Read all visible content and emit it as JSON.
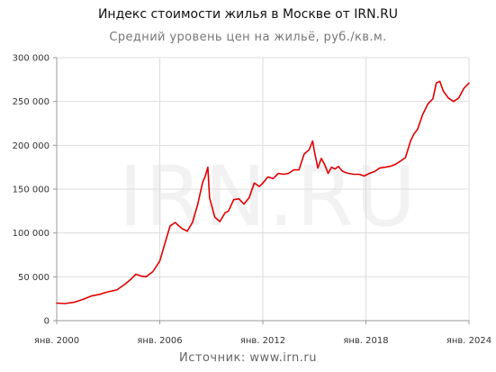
{
  "chart_data": {
    "type": "line",
    "title": "Индекс стоимости жилья в Москве от IRN.RU",
    "subtitle": "Средний уровень цен на жильё, руб./кв.м.",
    "source": "Источник: www.irn.ru",
    "watermark": "IRN.RU",
    "xlabel": "",
    "ylabel": "",
    "ylim": [
      0,
      300000
    ],
    "xlim": [
      2000.0,
      2024.0
    ],
    "y_ticks": [
      0,
      50000,
      100000,
      150000,
      200000,
      250000,
      300000
    ],
    "y_tick_labels": [
      "0",
      "50 000",
      "100 000",
      "150 000",
      "200 000",
      "250 000",
      "300 000"
    ],
    "x_ticks": [
      2000,
      2006,
      2012,
      2018,
      2024
    ],
    "x_tick_labels": [
      "янв. 2000",
      "янв. 2006",
      "янв. 2012",
      "янв. 2018",
      "янв. 2024"
    ],
    "grid": true,
    "legend": "none",
    "colors": {
      "line": "#e00000",
      "grid": "#dddddd",
      "watermark": "#f2f2f2"
    },
    "series": [
      {
        "x": [
          2000.0,
          2000.5,
          2001.0,
          2001.5,
          2002.0,
          2002.5,
          2003.0,
          2003.5,
          2004.0,
          2004.3,
          2004.6,
          2004.9,
          2005.2,
          2005.6,
          2006.0,
          2006.3,
          2006.6,
          2006.9,
          2007.0,
          2007.3,
          2007.6,
          2007.9,
          2008.2,
          2008.5,
          2008.65,
          2008.8,
          2008.9,
          2009.2,
          2009.5,
          2009.8,
          2010.0,
          2010.3,
          2010.6,
          2010.9,
          2011.2,
          2011.5,
          2011.8,
          2012.0,
          2012.3,
          2012.6,
          2012.9,
          2013.2,
          2013.5,
          2013.8,
          2014.1,
          2014.4,
          2014.7,
          2014.9,
          2015.0,
          2015.2,
          2015.4,
          2015.6,
          2015.8,
          2016.0,
          2016.2,
          2016.4,
          2016.6,
          2016.8,
          2017.0,
          2017.3,
          2017.6,
          2017.9,
          2018.2,
          2018.5,
          2018.8,
          2019.1,
          2019.4,
          2019.7,
          2020.0,
          2020.3,
          2020.6,
          2020.8,
          2021.0,
          2021.3,
          2021.6,
          2021.9,
          2022.1,
          2022.3,
          2022.5,
          2022.8,
          2023.1,
          2023.4,
          2023.7,
          2024.0
        ],
        "y": [
          20000,
          19500,
          21000,
          24000,
          28000,
          30000,
          33000,
          35000,
          42000,
          47000,
          53000,
          51000,
          50000,
          56000,
          68000,
          88000,
          108000,
          112000,
          110000,
          105000,
          102000,
          112000,
          132000,
          158000,
          165000,
          175000,
          140000,
          118000,
          113000,
          123000,
          125000,
          138000,
          139000,
          133000,
          140000,
          157000,
          153000,
          157000,
          164000,
          162000,
          168000,
          167000,
          168000,
          172000,
          172000,
          190000,
          195000,
          205000,
          193000,
          174000,
          185000,
          178000,
          168000,
          175000,
          173000,
          176000,
          171000,
          169000,
          168000,
          167000,
          167000,
          165000,
          168000,
          170000,
          174000,
          175000,
          176000,
          178000,
          182000,
          186000,
          205000,
          213000,
          218000,
          235000,
          247000,
          253000,
          271000,
          273000,
          262000,
          254000,
          250000,
          254000,
          265000,
          271000
        ]
      }
    ]
  }
}
